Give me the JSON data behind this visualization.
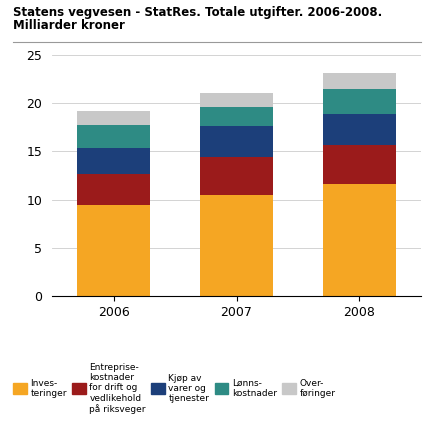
{
  "title_line1": "Statens vegvesen - StatRes. Totale utgifter. 2006-2008.",
  "title_line2": "Milliarder kroner",
  "axis_ylabel": "Milliarder kroner",
  "years": [
    "2006",
    "2007",
    "2008"
  ],
  "colors": [
    "#F5A623",
    "#9B1B1B",
    "#1C3F7A",
    "#2E8B84",
    "#C8C8C8"
  ],
  "values_inv": [
    9.4,
    10.5,
    11.6
  ],
  "values_ent": [
    3.3,
    3.9,
    4.1
  ],
  "values_kjop": [
    2.7,
    3.2,
    3.2
  ],
  "values_lon": [
    2.3,
    2.0,
    2.6
  ],
  "values_over": [
    1.5,
    1.5,
    1.6
  ],
  "ylim": [
    0,
    25
  ],
  "yticks": [
    0,
    5,
    10,
    15,
    20,
    25
  ],
  "bar_width": 0.6,
  "background_color": "#ffffff",
  "grid_color": "#cccccc",
  "legend_col1": "Inves-\nteringer",
  "legend_col2": "Entreprise-\nkostnader\nfor drift og\nvedlikehold\npå riksveger",
  "legend_col3": "Kjøp av\nvarer og\ntjenester",
  "legend_col4": "Lønns-\nkostnader",
  "legend_col5": "Over-\nføringer"
}
